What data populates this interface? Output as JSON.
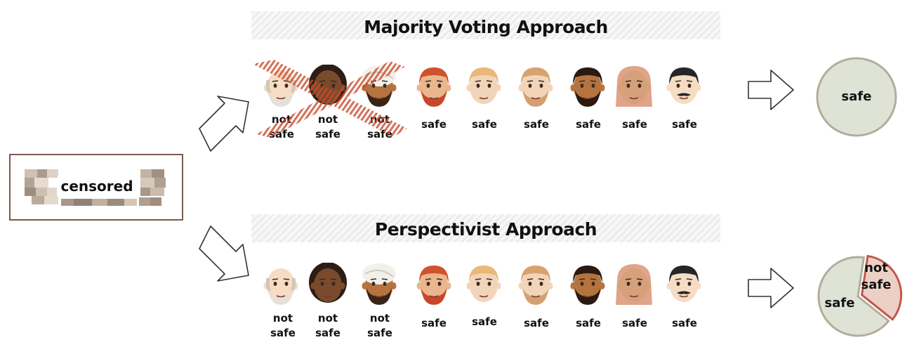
{
  "input": {
    "text": "censored"
  },
  "majority": {
    "title": "Majority Voting Approach",
    "votes": [
      "not\nsafe",
      "not\nsafe",
      "not\nsafe",
      "safe",
      "safe",
      "safe",
      "safe",
      "safe",
      "safe"
    ],
    "result": "safe"
  },
  "perspectivist": {
    "title": "Perspectivist Approach",
    "votes": [
      "not\nsafe",
      "not\nsafe",
      "not\nsafe",
      "safe",
      "safe",
      "safe",
      "safe",
      "safe",
      "safe"
    ],
    "result_safe": "safe",
    "result_not_safe": "not\nsafe"
  },
  "colors": {
    "pie_fill": "#dfe3d6",
    "pie_border": "#b2ad9c",
    "not_safe_fill": "#ecd0c6",
    "not_safe_border": "#c1584a",
    "cross": "#c94a2c"
  },
  "annotators": [
    "older-bald-man-icon",
    "woman-curly-hair-icon",
    "man-turban-icon",
    "red-hair-man-icon",
    "blond-man-icon",
    "man-beard-icon",
    "dark-skin-man-icon",
    "blond-woman-icon",
    "man-mustache-icon"
  ]
}
